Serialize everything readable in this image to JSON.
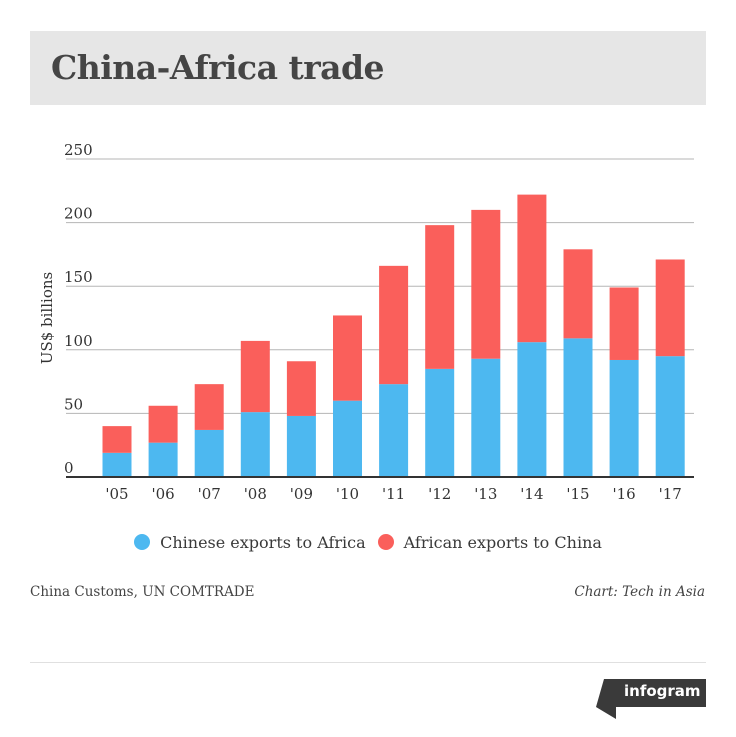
{
  "header": {
    "title": "China-Africa trade"
  },
  "chart_data": {
    "type": "bar",
    "stacked": true,
    "categories": [
      "'05",
      "'06",
      "'07",
      "'08",
      "'09",
      "'10",
      "'11",
      "'12",
      "'13",
      "'14",
      "'15",
      "'16",
      "'17"
    ],
    "series": [
      {
        "name": "Chinese exports to Africa",
        "color": "#4db8f0",
        "values": [
          19,
          27,
          37,
          51,
          48,
          60,
          73,
          85,
          93,
          106,
          109,
          92,
          95
        ]
      },
      {
        "name": "African exports to China",
        "color": "#fa5f5b",
        "values": [
          21,
          29,
          36,
          56,
          43,
          67,
          93,
          113,
          117,
          116,
          70,
          57,
          76
        ]
      }
    ],
    "ylabel": "US$ billions",
    "xlabel": "",
    "yticks": [
      0,
      50,
      100,
      150,
      200,
      250
    ],
    "ylim": [
      0,
      250
    ],
    "grid": true,
    "legend_position": "bottom"
  },
  "footer": {
    "source": "China Customs, UN COMTRADE",
    "credit": "Chart: Tech in Asia",
    "logo": "infogram"
  }
}
